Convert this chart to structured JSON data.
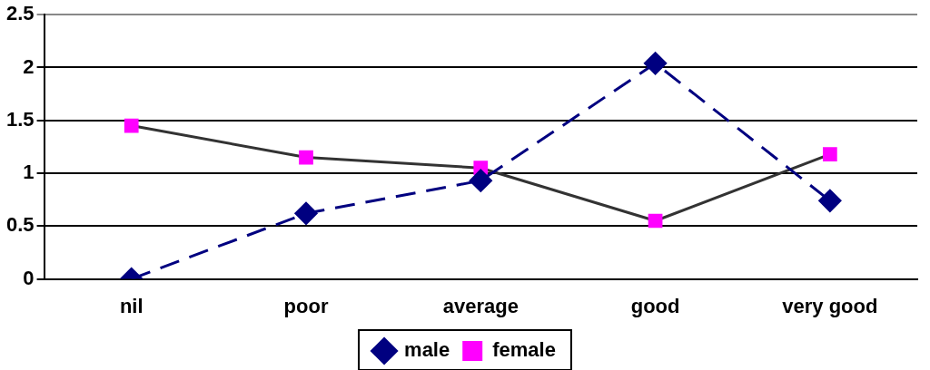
{
  "chart_data": {
    "type": "line",
    "categories": [
      "nil",
      "poor",
      "average",
      "good",
      "very good"
    ],
    "series": [
      {
        "name": "male",
        "color": "#000080",
        "values": [
          0,
          0.62,
          0.93,
          2.04,
          0.74
        ],
        "marker": "diamond",
        "line_style": "dashed"
      },
      {
        "name": "female",
        "color": "#333333",
        "colors": [
          "#ff00ff",
          "#ff00ff",
          "#ff00ff",
          "#ff00ff",
          "#ff00ff"
        ],
        "values": [
          1.45,
          1.15,
          1.05,
          0.55,
          1.18
        ],
        "marker": "square",
        "line_style": "solid"
      }
    ],
    "ylim": [
      0,
      2.5
    ],
    "yticks": [
      0,
      0.5,
      1,
      1.5,
      2,
      2.5
    ],
    "grid": "y",
    "legend": "bottom"
  }
}
